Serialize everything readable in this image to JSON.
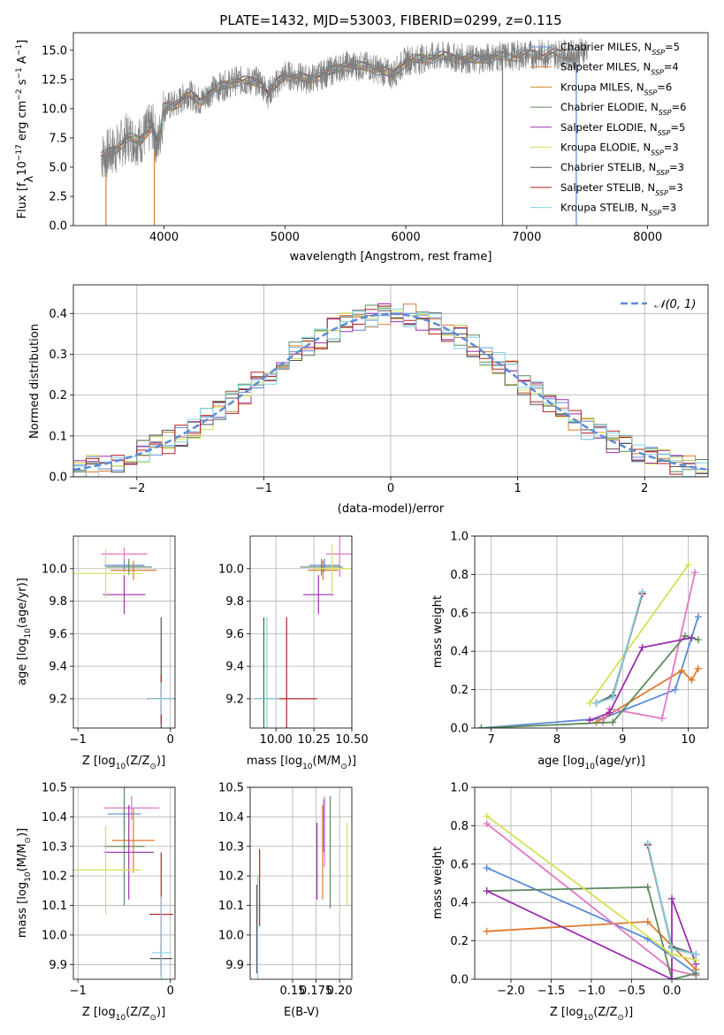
{
  "figure": {
    "title": "PLATE=1432, MJD=53003, FIBERID=0299, z=0.115"
  },
  "chart_data": [
    {
      "id": "spectrum",
      "type": "line",
      "xlabel": "wavelength [Angstrom, rest frame]",
      "ylabel_parts": [
        "Flux [f",
        "λ",
        "10",
        "−17",
        " erg cm",
        "−2",
        " s",
        "−1",
        " A",
        "−1",
        "]"
      ],
      "xlim": [
        3250,
        8500
      ],
      "ylim": [
        0,
        16.5
      ],
      "xticks": [
        4000,
        5000,
        6000,
        7000,
        8000
      ],
      "yticks": [
        0.0,
        2.5,
        5.0,
        7.5,
        10.0,
        12.5,
        15.0
      ],
      "grid": false,
      "legend_position": "upper-right",
      "observed_color": "#7f7f7f",
      "observed_anchor_points": [
        [
          3480,
          5.9
        ],
        [
          3600,
          6.5
        ],
        [
          3700,
          7.6
        ],
        [
          3800,
          7.2
        ],
        [
          3900,
          8.6
        ],
        [
          3950,
          6.8
        ],
        [
          4000,
          10.1
        ],
        [
          4100,
          10.4
        ],
        [
          4200,
          11.3
        ],
        [
          4300,
          10.6
        ],
        [
          4400,
          11.6
        ],
        [
          4600,
          12.4
        ],
        [
          4800,
          12.3
        ],
        [
          4860,
          11.3
        ],
        [
          5000,
          12.9
        ],
        [
          5200,
          12.5
        ],
        [
          5300,
          12.9
        ],
        [
          5500,
          13.7
        ],
        [
          5700,
          13.6
        ],
        [
          5890,
          12.9
        ],
        [
          6000,
          14.1
        ],
        [
          6300,
          14.5
        ],
        [
          6563,
          14.2
        ],
        [
          6700,
          14.4
        ],
        [
          7000,
          14.6
        ],
        [
          7200,
          14.7
        ],
        [
          7400,
          14.6
        ],
        [
          7500,
          15.1
        ]
      ],
      "models": [
        {
          "label_main": "Chabrier MILES, N",
          "label_sub": "SSP",
          "label_tail": "=5",
          "color": "#5b8bd6",
          "x_end": 7420,
          "spike": 7410
        },
        {
          "label_main": "Salpeter MILES, N",
          "label_sub": "SSP",
          "label_tail": "=4",
          "color": "#e07a2f",
          "x_end": 7420,
          "spike": 3520
        },
        {
          "label_main": "Kroupa MILES, N",
          "label_sub": "SSP",
          "label_tail": "=6",
          "color": "#c98a2a",
          "x_end": 7420,
          "spike": 3920
        },
        {
          "label_main": "Chabrier ELODIE, N",
          "label_sub": "SSP",
          "label_tail": "=6",
          "color": "#5e8a5e",
          "x_end": 6800,
          "spike": 6800
        },
        {
          "label_main": "Salpeter ELODIE, N",
          "label_sub": "SSP",
          "label_tail": "=5",
          "color": "#9b2fae",
          "x_end": 6800,
          "spike": null
        },
        {
          "label_main": "Kroupa ELODIE, N",
          "label_sub": "SSP",
          "label_tail": "=3",
          "color": "#d4e157",
          "x_end": 6800,
          "spike": null
        },
        {
          "label_main": "Chabrier STELIB, N",
          "label_sub": "SSP",
          "label_tail": "=3",
          "color": "#555555",
          "x_end": 7300,
          "spike": null
        },
        {
          "label_main": "Salpeter STELIB, N",
          "label_sub": "SSP",
          "label_tail": "=3",
          "color": "#b22222",
          "x_end": 7300,
          "spike": null
        },
        {
          "label_main": "Kroupa STELIB, N",
          "label_sub": "SSP",
          "label_tail": "=3",
          "color": "#7fd3e0",
          "x_end": 7300,
          "spike": null
        }
      ]
    },
    {
      "id": "residuals",
      "type": "histogram",
      "xlabel": "(data-model)/error",
      "ylabel": "Normed distribution",
      "xlim": [
        -2.5,
        2.5
      ],
      "ylim": [
        0,
        0.47
      ],
      "xticks": [
        -2,
        -1,
        0,
        1,
        2
      ],
      "yticks": [
        0.0,
        0.1,
        0.2,
        0.3,
        0.4
      ],
      "grid": true,
      "legend_position": "upper-right",
      "bin_width": 0.1,
      "series_colors": [
        "#5b8bd6",
        "#e07a2f",
        "#5e8a5e",
        "#9b2fae",
        "#d4e157",
        "#555555",
        "#b22222",
        "#7fd3e0"
      ],
      "reference_curve": {
        "label": "𝒩(0, 1)",
        "color": "#5b8bd6",
        "mean": 0,
        "sigma": 1
      }
    },
    {
      "id": "age_vs_Z",
      "type": "errorbar",
      "xlabel_parts": [
        "Z [log",
        "10",
        "(Z/Z",
        "⊙",
        ")]"
      ],
      "ylabel_parts": [
        "age  [log",
        "10",
        "(age/yr)]"
      ],
      "xlim": [
        -1.05,
        0.05
      ],
      "ylim": [
        9.02,
        10.2
      ],
      "xticks": [
        -1,
        0
      ],
      "yticks": [
        9.2,
        9.4,
        9.6,
        9.8,
        10.0
      ],
      "grid": true,
      "points": [
        {
          "x": -0.5,
          "y": 10.02,
          "xerr": 0.22,
          "yerr": 0.04,
          "color": "#5b8bd6"
        },
        {
          "x": -0.4,
          "y": 9.99,
          "xerr": 0.25,
          "yerr": 0.06,
          "color": "#e07a2f"
        },
        {
          "x": -0.5,
          "y": 10.09,
          "xerr": 0.25,
          "yerr": 0.04,
          "color": "#e377c2"
        },
        {
          "x": -0.45,
          "y": 10.01,
          "xerr": 0.25,
          "yerr": 0.05,
          "color": "#5e8a5e"
        },
        {
          "x": -0.5,
          "y": 9.84,
          "xerr": 0.23,
          "yerr": 0.12,
          "color": "#9b2fae"
        },
        {
          "x": -0.7,
          "y": 9.97,
          "xerr": 0.4,
          "yerr": 0.15,
          "color": "#d4e157"
        },
        {
          "x": -0.1,
          "y": 9.2,
          "xerr": 0.12,
          "yerr": 0.5,
          "color": "#555555"
        },
        {
          "x": -0.1,
          "y": 9.2,
          "xerr": 0.15,
          "yerr": 0.15,
          "color": "#b22222"
        },
        {
          "x": -0.1,
          "y": 9.2,
          "xerr": 0.14,
          "yerr": 0.1,
          "color": "#7fd3e0"
        }
      ]
    },
    {
      "id": "age_vs_mass",
      "type": "errorbar",
      "xlabel_parts": [
        "mass [log",
        "10",
        "(M/M",
        "⊙",
        ")]"
      ],
      "ylabel_parts": [],
      "xlim": [
        9.83,
        10.5
      ],
      "ylim": [
        9.02,
        10.2
      ],
      "xticks": [
        10.0,
        10.25,
        10.5
      ],
      "xtick_labels": [
        "10.00",
        "10.25",
        "10.50"
      ],
      "yticks": [
        9.2,
        9.4,
        9.6,
        9.8,
        10.0
      ],
      "grid": true,
      "points": [
        {
          "x": 10.32,
          "y": 10.02,
          "xerr": 0.1,
          "yerr": 0.04,
          "color": "#5b8bd6"
        },
        {
          "x": 10.31,
          "y": 9.99,
          "xerr": 0.1,
          "yerr": 0.06,
          "color": "#e07a2f"
        },
        {
          "x": 10.42,
          "y": 10.09,
          "xerr": 0.09,
          "yerr": 0.14,
          "color": "#e377c2"
        },
        {
          "x": 10.3,
          "y": 10.01,
          "xerr": 0.14,
          "yerr": 0.05,
          "color": "#5e8a5e"
        },
        {
          "x": 10.28,
          "y": 9.84,
          "xerr": 0.1,
          "yerr": 0.12,
          "color": "#9b2fae"
        },
        {
          "x": 10.37,
          "y": 10.0,
          "xerr": 0.12,
          "yerr": 0.15,
          "color": "#d4e157"
        },
        {
          "x": 9.92,
          "y": 9.2,
          "xerr": 0.06,
          "yerr": 0.5,
          "color": "#555555"
        },
        {
          "x": 10.07,
          "y": 9.2,
          "xerr": 0.2,
          "yerr": 0.5,
          "color": "#b22222"
        },
        {
          "x": 9.94,
          "y": 9.2,
          "xerr": 0.08,
          "yerr": 0.5,
          "color": "#7fd3e0"
        }
      ]
    },
    {
      "id": "massweight_vs_age",
      "type": "line",
      "xlabel_parts": [
        "age  [log",
        "10",
        "(age/yr)]"
      ],
      "ylabel": "mass weight",
      "xlim": [
        6.75,
        10.3
      ],
      "ylim": [
        0,
        1.0
      ],
      "xticks": [
        7,
        8,
        9,
        10
      ],
      "yticks": [
        0.0,
        0.2,
        0.4,
        0.6,
        0.8,
        1.0
      ],
      "grid": true,
      "series": [
        {
          "color": "#5b8bd6",
          "x": [
            6.85,
            8.7,
            9.8,
            10.15
          ],
          "y": [
            0.0,
            0.05,
            0.2,
            0.58
          ]
        },
        {
          "color": "#e07a2f",
          "x": [
            8.6,
            9.9,
            10.05,
            10.15
          ],
          "y": [
            0.03,
            0.3,
            0.25,
            0.31
          ]
        },
        {
          "color": "#e377c2",
          "x": [
            8.7,
            8.8,
            9.6,
            10.1
          ],
          "y": [
            0.03,
            0.1,
            0.05,
            0.81
          ]
        },
        {
          "color": "#5e8a5e",
          "x": [
            6.85,
            8.85,
            9.95,
            10.15
          ],
          "y": [
            0.0,
            0.03,
            0.48,
            0.46
          ]
        },
        {
          "color": "#9b2fae",
          "x": [
            8.5,
            8.8,
            9.3,
            10.05
          ],
          "y": [
            0.04,
            0.08,
            0.42,
            0.47
          ]
        },
        {
          "color": "#d4e157",
          "x": [
            8.5,
            10.0
          ],
          "y": [
            0.13,
            0.85
          ]
        },
        {
          "color": "#555555",
          "x": [
            8.6,
            8.85,
            9.3
          ],
          "y": [
            0.13,
            0.17,
            0.7
          ]
        },
        {
          "color": "#b22222",
          "x": [
            8.6,
            8.85,
            9.3
          ],
          "y": [
            0.13,
            0.16,
            0.7
          ]
        },
        {
          "color": "#7fd3e0",
          "x": [
            8.6,
            8.85,
            9.3
          ],
          "y": [
            0.13,
            0.16,
            0.71
          ]
        }
      ]
    },
    {
      "id": "mass_vs_Z",
      "type": "errorbar",
      "xlabel_parts": [
        "Z [log",
        "10",
        "(Z/Z",
        "⊙",
        ")]"
      ],
      "ylabel_parts": [
        "mass [log",
        "10",
        "(M/M",
        "⊙",
        ")]"
      ],
      "xlim": [
        -1.05,
        0.05
      ],
      "ylim": [
        9.85,
        10.5
      ],
      "xticks": [
        -1,
        0
      ],
      "yticks": [
        9.9,
        10.0,
        10.1,
        10.2,
        10.3,
        10.4,
        10.5
      ],
      "grid": true,
      "points": [
        {
          "x": -0.5,
          "y": 10.41,
          "xerr": 0.18,
          "yerr": 0.05,
          "color": "#5b8bd6"
        },
        {
          "x": -0.4,
          "y": 10.32,
          "xerr": 0.23,
          "yerr": 0.11,
          "color": "#e07a2f"
        },
        {
          "x": -0.42,
          "y": 10.43,
          "xerr": 0.3,
          "yerr": 0.04,
          "color": "#e377c2"
        },
        {
          "x": -0.5,
          "y": 10.3,
          "xerr": 0.22,
          "yerr": 0.2,
          "color": "#5e8a5e"
        },
        {
          "x": -0.45,
          "y": 10.28,
          "xerr": 0.27,
          "yerr": 0.16,
          "color": "#9b2fae"
        },
        {
          "x": -0.7,
          "y": 10.22,
          "xerr": 0.38,
          "yerr": 0.15,
          "color": "#d4e157"
        },
        {
          "x": -0.1,
          "y": 9.92,
          "xerr": 0.12,
          "yerr": 0.05,
          "color": "#555555"
        },
        {
          "x": -0.1,
          "y": 10.07,
          "xerr": 0.13,
          "yerr": 0.21,
          "color": "#b22222"
        },
        {
          "x": -0.1,
          "y": 9.94,
          "xerr": 0.1,
          "yerr": 0.19,
          "color": "#7fd3e0"
        }
      ]
    },
    {
      "id": "mass_vs_ebv",
      "type": "errorbar",
      "xlabel": "E(B-V)",
      "ylabel_parts": [],
      "xlim": [
        0.105,
        0.213
      ],
      "ylim": [
        9.85,
        10.5
      ],
      "xticks": [
        0.15,
        0.175,
        0.2
      ],
      "xtick_labels": [
        "0.15",
        "0.175",
        "0.20"
      ],
      "yticks": [
        9.9,
        10.0,
        10.1,
        10.2,
        10.3,
        10.4,
        10.5
      ],
      "grid": true,
      "points": [
        {
          "x": 0.183,
          "y": 10.37,
          "xerr": 0.0,
          "yerr": 0.09,
          "color": "#5b8bd6"
        },
        {
          "x": 0.182,
          "y": 10.28,
          "xerr": 0.0,
          "yerr": 0.16,
          "color": "#e07a2f"
        },
        {
          "x": 0.184,
          "y": 10.35,
          "xerr": 0.0,
          "yerr": 0.12,
          "color": "#e377c2"
        },
        {
          "x": 0.19,
          "y": 10.28,
          "xerr": 0.0,
          "yerr": 0.19,
          "color": "#5e8a5e"
        },
        {
          "x": 0.176,
          "y": 10.25,
          "xerr": 0.0,
          "yerr": 0.13,
          "color": "#9b2fae"
        },
        {
          "x": 0.208,
          "y": 10.24,
          "xerr": 0.0,
          "yerr": 0.14,
          "color": "#d4e157"
        },
        {
          "x": 0.112,
          "y": 10.02,
          "xerr": 0.0,
          "yerr": 0.15,
          "color": "#555555"
        },
        {
          "x": 0.115,
          "y": 10.16,
          "xerr": 0.0,
          "yerr": 0.13,
          "color": "#b22222"
        },
        {
          "x": 0.113,
          "y": 10.02,
          "xerr": 0.0,
          "yerr": 0.18,
          "color": "#7fd3e0"
        }
      ]
    },
    {
      "id": "massweight_vs_Z",
      "type": "line",
      "xlabel_parts": [
        "Z [log",
        "10",
        "(Z/Z",
        "⊙",
        ")]"
      ],
      "ylabel": "mass weight",
      "xlim": [
        -2.45,
        0.45
      ],
      "ylim": [
        0,
        1.0
      ],
      "xticks": [
        -2.0,
        -1.5,
        -1.0,
        -0.5,
        0.0
      ],
      "yticks": [
        0.0,
        0.2,
        0.4,
        0.6,
        0.8,
        1.0
      ],
      "grid": true,
      "series": [
        {
          "color": "#5b8bd6",
          "x": [
            -2.3,
            -0.3,
            0.3
          ],
          "y": [
            0.58,
            0.21,
            0.03
          ]
        },
        {
          "color": "#e07a2f",
          "x": [
            -2.3,
            -0.3,
            0.3
          ],
          "y": [
            0.25,
            0.3,
            0.05
          ]
        },
        {
          "color": "#e377c2",
          "x": [
            -2.3,
            0.0,
            0.3
          ],
          "y": [
            0.81,
            0.05,
            0.02
          ]
        },
        {
          "color": "#5e8a5e",
          "x": [
            -2.3,
            -0.3,
            0.0,
            0.3
          ],
          "y": [
            0.46,
            0.48,
            0.0,
            0.03
          ]
        },
        {
          "color": "#9b2fae",
          "x": [
            -2.3,
            0.0,
            0.0,
            0.3
          ],
          "y": [
            0.46,
            0.0,
            0.42,
            0.08
          ]
        },
        {
          "color": "#d4e157",
          "x": [
            -2.3,
            0.0,
            0.3
          ],
          "y": [
            0.85,
            0.13,
            0.1
          ]
        },
        {
          "color": "#555555",
          "x": [
            -0.3,
            0.0,
            0.3
          ],
          "y": [
            0.7,
            0.17,
            0.13
          ]
        },
        {
          "color": "#b22222",
          "x": [
            -0.3,
            0.0,
            0.3
          ],
          "y": [
            0.7,
            0.16,
            0.13
          ]
        },
        {
          "color": "#7fd3e0",
          "x": [
            -0.3,
            0.0,
            0.3
          ],
          "y": [
            0.71,
            0.16,
            0.13
          ]
        }
      ]
    }
  ]
}
